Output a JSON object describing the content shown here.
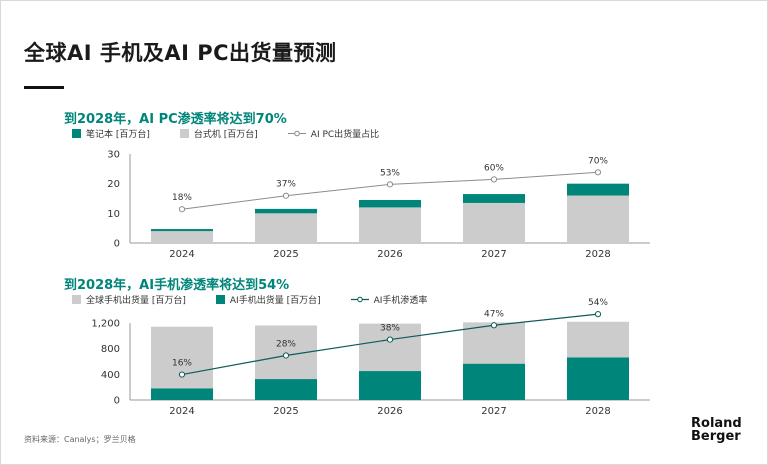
{
  "slide": {
    "title": "全球AI 手机及AI PC出货量预测",
    "source": "资料来源：Canalys；罗兰贝格",
    "logo_line1": "Roland",
    "logo_line2": "Berger"
  },
  "colors": {
    "teal": "#00857a",
    "gray": "#cccccc",
    "line_gray": "#8c8c8c",
    "line_teal": "#0d5c5a"
  },
  "chart_data": [
    {
      "type": "bar",
      "stacked": true,
      "title": "到2028年，AI PC渗透率将达到70%",
      "categories": [
        "2024",
        "2025",
        "2026",
        "2027",
        "2028"
      ],
      "series": [
        {
          "name": "台式机 [百万台]",
          "values": [
            4.0,
            10.0,
            12.0,
            13.5,
            16.0
          ]
        },
        {
          "name": "笔记本 [百万台]",
          "values": [
            0.7,
            1.5,
            2.5,
            3.0,
            4.0
          ]
        }
      ],
      "line_series": {
        "name": "AI PC出货量占比",
        "values": [
          18,
          37,
          53,
          60,
          70
        ],
        "labels": [
          "18%",
          "37%",
          "53%",
          "60%",
          "70%"
        ],
        "ylim": [
          0,
          100
        ]
      },
      "legend": [
        "笔记本 [百万台]",
        "台式机 [百万台]",
        "AI PC出货量占比"
      ],
      "yticks": [
        "0",
        "10",
        "20",
        "30"
      ],
      "ylim": [
        0,
        30
      ]
    },
    {
      "type": "bar",
      "stacked": true,
      "title": "到2028年，AI手机渗透率将达到54%",
      "categories": [
        "2024",
        "2025",
        "2026",
        "2027",
        "2028"
      ],
      "series": [
        {
          "name": "AI手机出货量 [百万台]",
          "values": [
            190,
            340,
            470,
            590,
            690
          ]
        },
        {
          "name": "全球手机出货量 [百万台]",
          "values": [
            1000,
            870,
            770,
            670,
            580
          ]
        }
      ],
      "line_series": {
        "name": "AI手机渗透率",
        "values": [
          16,
          28,
          38,
          47,
          54
        ],
        "labels": [
          "16%",
          "28%",
          "38%",
          "47%",
          "54%"
        ],
        "ylim": [
          0,
          100
        ]
      },
      "legend": [
        "全球手机出货量 [百万台]",
        "AI手机出货量 [百万台]",
        "AI手机渗透率"
      ],
      "yticks": [
        "0",
        "400",
        "800",
        "1,200"
      ],
      "ylim": [
        0,
        1250
      ]
    }
  ]
}
